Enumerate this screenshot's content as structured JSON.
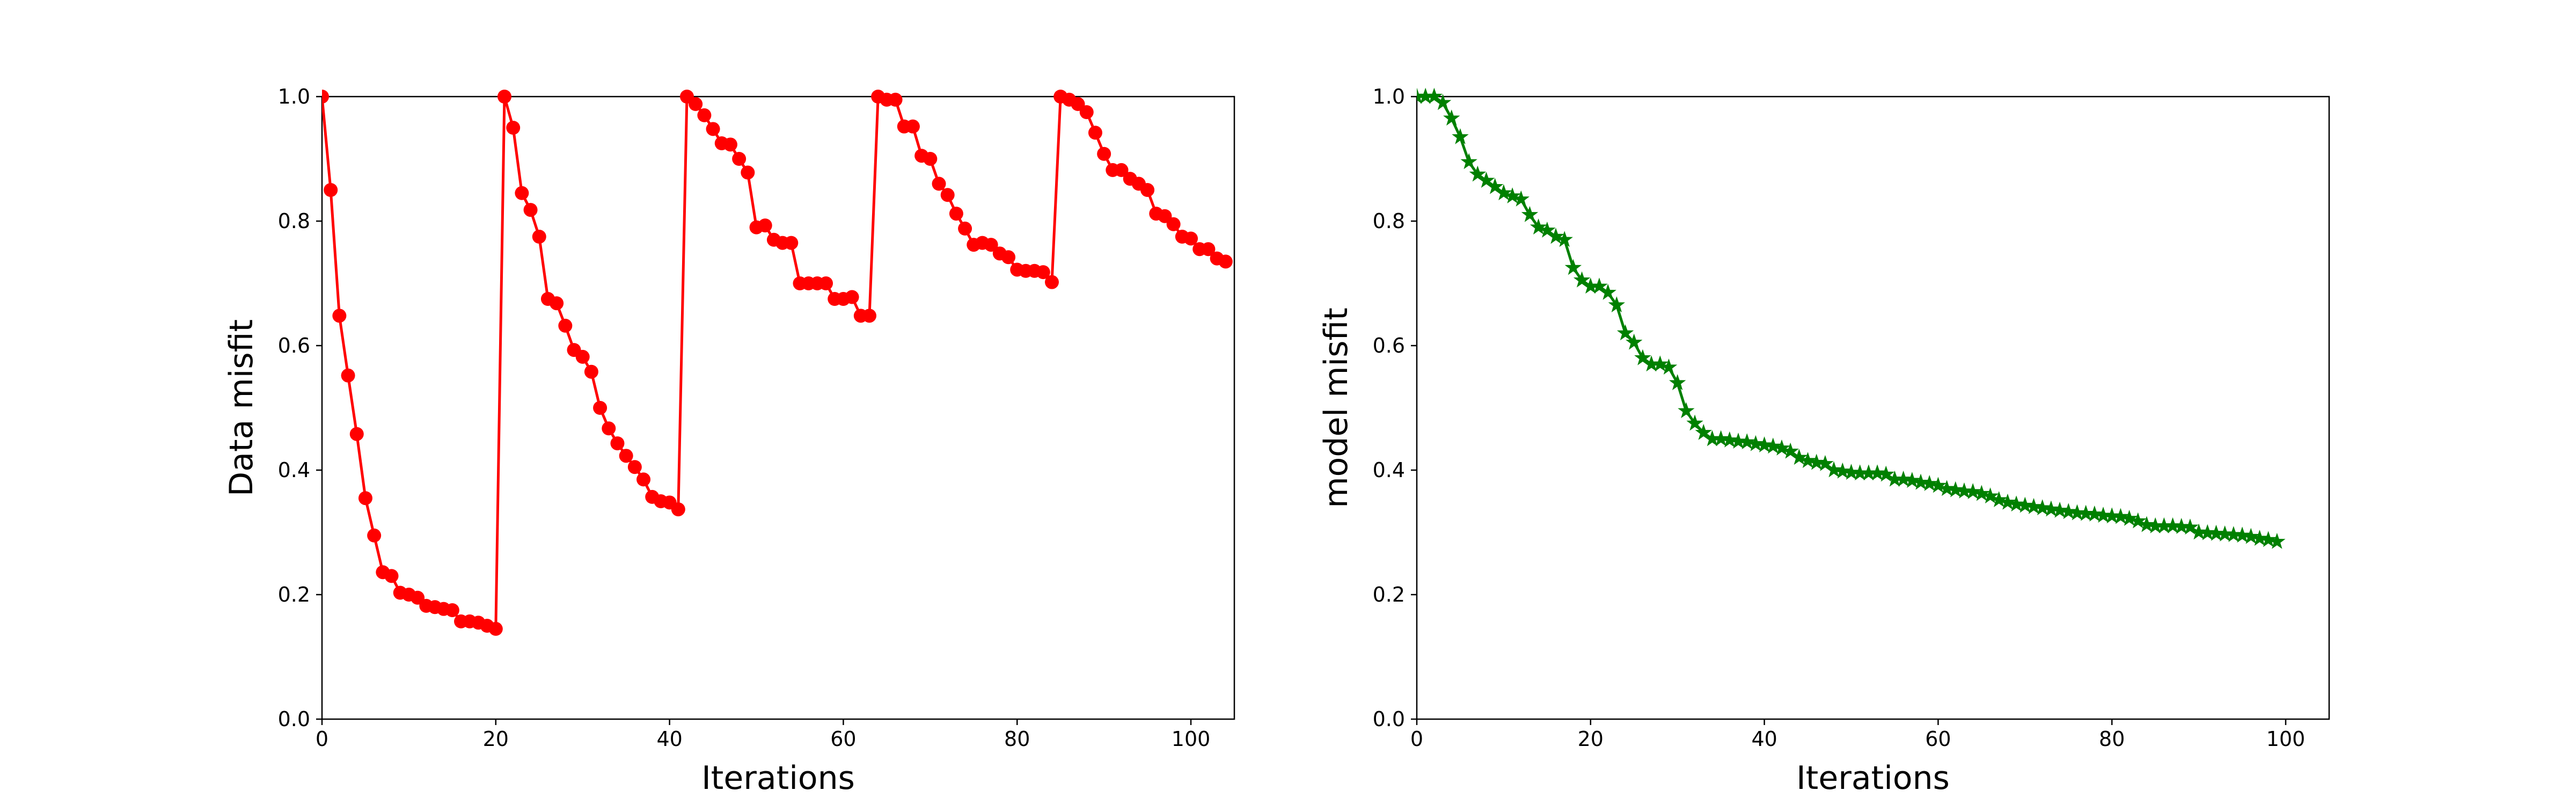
{
  "chart_data": [
    {
      "type": "line",
      "xlabel": "Iterations",
      "ylabel": "Data misfit",
      "xlim": [
        0,
        105
      ],
      "ylim": [
        0.0,
        1.0
      ],
      "xticks": [
        0,
        20,
        40,
        60,
        80,
        100
      ],
      "yticks": [
        0.0,
        0.2,
        0.4,
        0.6,
        0.8,
        1.0
      ],
      "grid": false,
      "series": [
        {
          "color": "#ff0000",
          "marker": "circle",
          "x": [
            0,
            1,
            2,
            3,
            4,
            5,
            6,
            7,
            8,
            9,
            10,
            11,
            12,
            13,
            14,
            15,
            16,
            17,
            18,
            19,
            20,
            21,
            22,
            23,
            24,
            25,
            26,
            27,
            28,
            29,
            30,
            31,
            32,
            33,
            34,
            35,
            36,
            37,
            38,
            39,
            40,
            41,
            42,
            43,
            44,
            45,
            46,
            47,
            48,
            49,
            50,
            51,
            52,
            53,
            54,
            55,
            56,
            57,
            58,
            59,
            60,
            61,
            62,
            63,
            64,
            65,
            66,
            67,
            68,
            69,
            70,
            71,
            72,
            73,
            74,
            75,
            76,
            77,
            78,
            79,
            80,
            81,
            82,
            83,
            84,
            85,
            86,
            87,
            88,
            89,
            90,
            91,
            92,
            93,
            94,
            95,
            96,
            97,
            98,
            99,
            100,
            101,
            102,
            103,
            104
          ],
          "y": [
            1.0,
            0.85,
            0.648,
            0.552,
            0.458,
            0.355,
            0.295,
            0.236,
            0.23,
            0.203,
            0.2,
            0.195,
            0.182,
            0.18,
            0.177,
            0.175,
            0.157,
            0.157,
            0.155,
            0.15,
            0.145,
            1.0,
            0.95,
            0.845,
            0.818,
            0.775,
            0.675,
            0.668,
            0.632,
            0.593,
            0.582,
            0.558,
            0.5,
            0.467,
            0.443,
            0.423,
            0.405,
            0.385,
            0.357,
            0.35,
            0.348,
            0.337,
            1.0,
            0.988,
            0.97,
            0.948,
            0.925,
            0.923,
            0.9,
            0.878,
            0.79,
            0.793,
            0.77,
            0.765,
            0.765,
            0.7,
            0.7,
            0.7,
            0.7,
            0.675,
            0.675,
            0.678,
            0.648,
            0.648,
            1.0,
            0.995,
            0.995,
            0.952,
            0.952,
            0.905,
            0.9,
            0.86,
            0.842,
            0.812,
            0.788,
            0.762,
            0.765,
            0.762,
            0.748,
            0.742,
            0.722,
            0.72,
            0.72,
            0.718,
            0.702,
            1.0,
            0.995,
            0.988,
            0.975,
            0.942,
            0.908,
            0.882,
            0.882,
            0.868,
            0.86,
            0.85,
            0.812,
            0.808,
            0.795,
            0.775,
            0.772,
            0.755,
            0.755,
            0.74,
            0.735
          ]
        }
      ]
    },
    {
      "type": "line",
      "xlabel": "Iterations",
      "ylabel": "model misfit",
      "xlim": [
        0,
        105
      ],
      "ylim": [
        0.0,
        1.0
      ],
      "xticks": [
        0,
        20,
        40,
        60,
        80,
        100
      ],
      "yticks": [
        0.0,
        0.2,
        0.4,
        0.6,
        0.8,
        1.0
      ],
      "grid": false,
      "series": [
        {
          "color": "#008000",
          "marker": "star",
          "x": [
            0,
            1,
            2,
            3,
            4,
            5,
            6,
            7,
            8,
            9,
            10,
            11,
            12,
            13,
            14,
            15,
            16,
            17,
            18,
            19,
            20,
            21,
            22,
            23,
            24,
            25,
            26,
            27,
            28,
            29,
            30,
            31,
            32,
            33,
            34,
            35,
            36,
            37,
            38,
            39,
            40,
            41,
            42,
            43,
            44,
            45,
            46,
            47,
            48,
            49,
            50,
            51,
            52,
            53,
            54,
            55,
            56,
            57,
            58,
            59,
            60,
            61,
            62,
            63,
            64,
            65,
            66,
            67,
            68,
            69,
            70,
            71,
            72,
            73,
            74,
            75,
            76,
            77,
            78,
            79,
            80,
            81,
            82,
            83,
            84,
            85,
            86,
            87,
            88,
            89,
            90,
            91,
            92,
            93,
            94,
            95,
            96,
            97,
            98,
            99
          ],
          "y": [
            1.0,
            1.0,
            1.0,
            0.99,
            0.965,
            0.935,
            0.895,
            0.875,
            0.865,
            0.855,
            0.845,
            0.84,
            0.835,
            0.81,
            0.79,
            0.785,
            0.775,
            0.77,
            0.725,
            0.705,
            0.695,
            0.695,
            0.685,
            0.665,
            0.62,
            0.605,
            0.58,
            0.57,
            0.57,
            0.565,
            0.54,
            0.495,
            0.475,
            0.46,
            0.45,
            0.45,
            0.448,
            0.446,
            0.445,
            0.442,
            0.44,
            0.438,
            0.435,
            0.43,
            0.42,
            0.415,
            0.412,
            0.41,
            0.4,
            0.398,
            0.396,
            0.395,
            0.395,
            0.395,
            0.393,
            0.385,
            0.385,
            0.383,
            0.38,
            0.378,
            0.375,
            0.37,
            0.368,
            0.366,
            0.365,
            0.362,
            0.358,
            0.352,
            0.348,
            0.345,
            0.343,
            0.341,
            0.339,
            0.337,
            0.335,
            0.333,
            0.331,
            0.33,
            0.329,
            0.327,
            0.326,
            0.325,
            0.322,
            0.318,
            0.312,
            0.31,
            0.31,
            0.31,
            0.309,
            0.308,
            0.3,
            0.299,
            0.298,
            0.297,
            0.296,
            0.295,
            0.293,
            0.29,
            0.288,
            0.285
          ]
        }
      ]
    }
  ]
}
